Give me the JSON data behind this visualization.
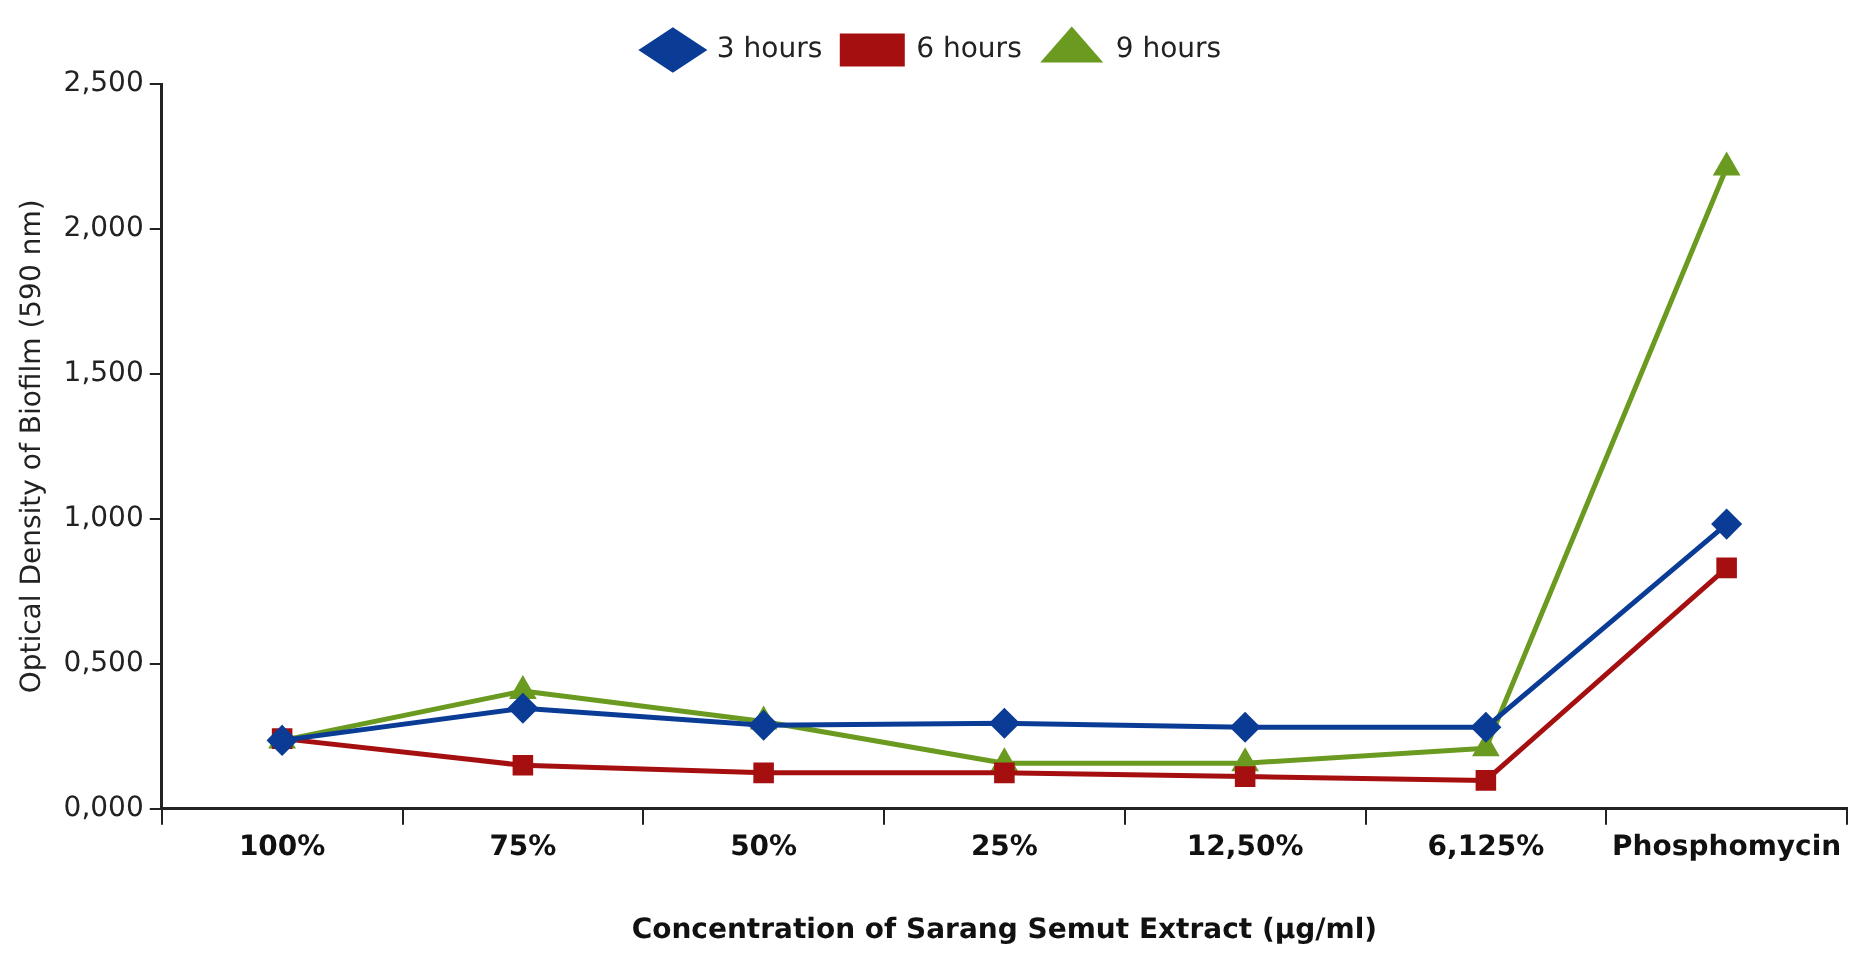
{
  "chart_data": {
    "type": "line",
    "xlabel": "Concentration of Sarang Semut Extract (µg/ml)",
    "ylabel": "Optical Density of Biofilm (590 nm)",
    "categories": [
      "100%",
      "75%",
      "50%",
      "25%",
      "12,50%",
      "6,125%",
      "Phosphomycin"
    ],
    "series": [
      {
        "name": "3 hours",
        "color": "#0a3c96",
        "marker": "diamond",
        "values": [
          0.236,
          0.347,
          0.288,
          0.295,
          0.281,
          0.281,
          0.982
        ]
      },
      {
        "name": "6 hours",
        "color": "#a50f0f",
        "marker": "square",
        "values": [
          0.242,
          0.15,
          0.124,
          0.124,
          0.111,
          0.098,
          0.831
        ]
      },
      {
        "name": "9 hours",
        "color": "#6a9a1f",
        "marker": "triangle",
        "values": [
          0.236,
          0.406,
          0.301,
          0.157,
          0.157,
          0.209,
          2.212
        ]
      }
    ],
    "ylim": [
      0,
      2.5
    ],
    "yticks": [
      {
        "value": 0,
        "label": "0,000"
      },
      {
        "value": 0.5,
        "label": "0,500"
      },
      {
        "value": 1,
        "label": "1,000"
      },
      {
        "value": 1.5,
        "label": "1,500"
      },
      {
        "value": 2,
        "label": "2,000"
      },
      {
        "value": 2.5,
        "label": "2,500"
      }
    ],
    "grid": false,
    "legend": "top"
  }
}
